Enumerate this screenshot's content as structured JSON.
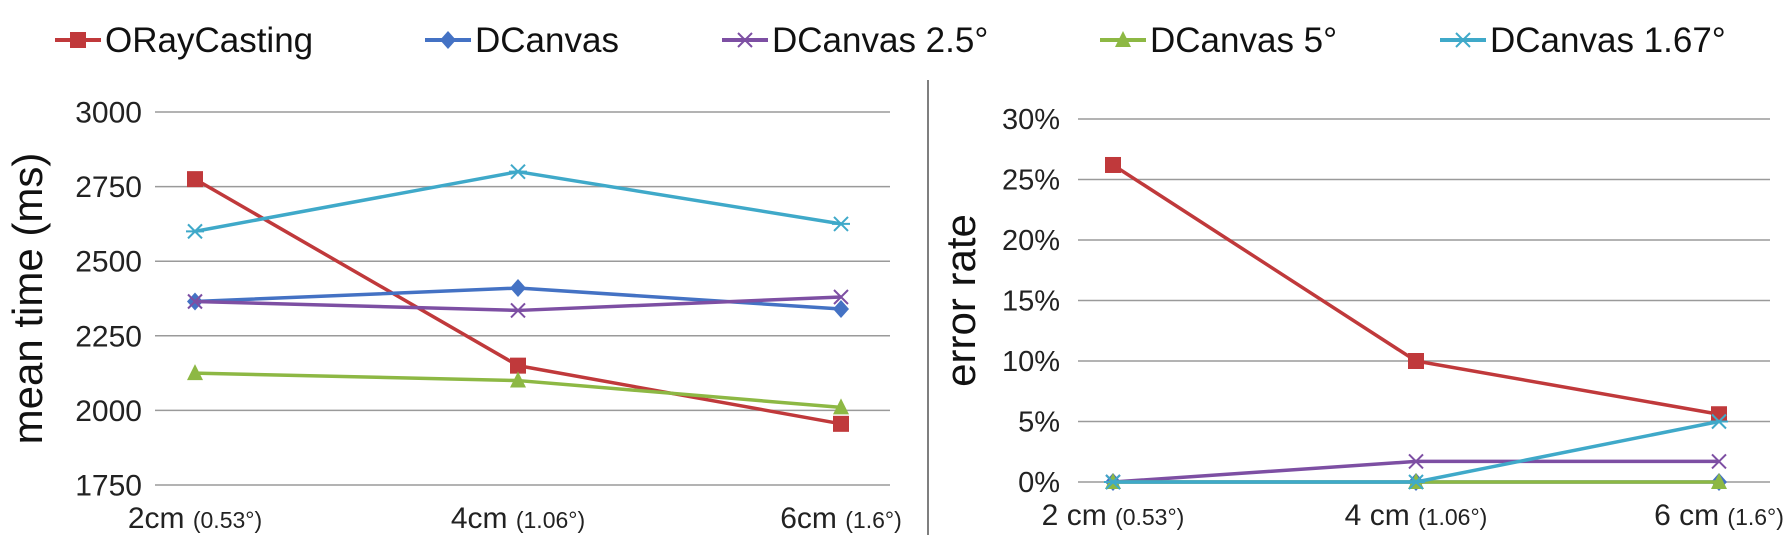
{
  "legend": [
    {
      "name": "ORayCasting",
      "color": "#C0393B",
      "marker": "square"
    },
    {
      "name": "DCanvas",
      "color": "#4472C4",
      "marker": "diamond"
    },
    {
      "name": "DCanvas 2.5°",
      "color": "#7D4FA3",
      "marker": "x"
    },
    {
      "name": "DCanvas 5°",
      "color": "#8DB844",
      "marker": "triangle"
    },
    {
      "name": "DCanvas 1.67°",
      "color": "#3FA9C9",
      "marker": "asterisk"
    }
  ],
  "chart_data": [
    {
      "type": "line",
      "ylabel": "mean time (ms)",
      "categories": [
        {
          "main": "2cm",
          "sub": "(0.53°)"
        },
        {
          "main": "4cm",
          "sub": "(1.06°)"
        },
        {
          "main": "6cm",
          "sub": "(1.6°)"
        }
      ],
      "ylim": [
        1750,
        3000
      ],
      "yticks": [
        1750,
        2000,
        2250,
        2500,
        2750,
        3000
      ],
      "ytick_labels": [
        "1750",
        "2000",
        "2250",
        "2500",
        "2750",
        "3000"
      ],
      "grid": true,
      "series": [
        {
          "name": "ORayCasting",
          "values": [
            2775,
            2150,
            1955
          ]
        },
        {
          "name": "DCanvas",
          "values": [
            2365,
            2410,
            2340
          ]
        },
        {
          "name": "DCanvas 2.5°",
          "values": [
            2365,
            2335,
            2380
          ]
        },
        {
          "name": "DCanvas 5°",
          "values": [
            2125,
            2100,
            2010
          ]
        },
        {
          "name": "DCanvas 1.67°",
          "values": [
            2600,
            2800,
            2625
          ]
        }
      ]
    },
    {
      "type": "line",
      "ylabel": "error rate",
      "categories": [
        {
          "main": "2 cm",
          "sub": "(0.53°)"
        },
        {
          "main": "4 cm",
          "sub": "(1.06°)"
        },
        {
          "main": "6 cm",
          "sub": "(1.6°)"
        }
      ],
      "ylim": [
        0,
        30
      ],
      "yticks": [
        0,
        5,
        10,
        15,
        20,
        25,
        30
      ],
      "ytick_labels": [
        "0%",
        "5%",
        "10%",
        "15%",
        "20%",
        "25%",
        "30%"
      ],
      "grid": true,
      "series": [
        {
          "name": "ORayCasting",
          "values": [
            26.2,
            10.0,
            5.6
          ]
        },
        {
          "name": "DCanvas",
          "values": [
            0,
            0,
            0
          ]
        },
        {
          "name": "DCanvas 2.5°",
          "values": [
            0,
            1.7,
            1.7
          ]
        },
        {
          "name": "DCanvas 5°",
          "values": [
            0,
            0,
            0
          ]
        },
        {
          "name": "DCanvas 1.67°",
          "values": [
            0,
            0,
            5.0
          ]
        }
      ]
    }
  ]
}
